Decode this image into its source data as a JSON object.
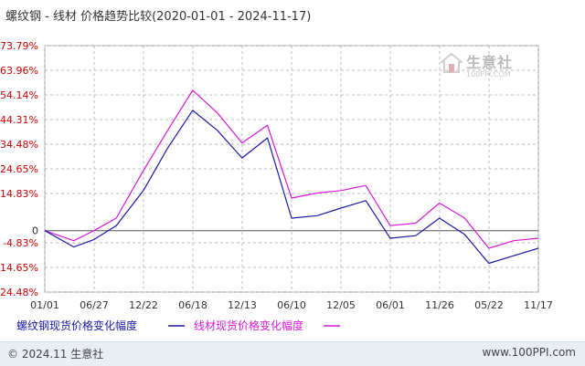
{
  "title": "螺纹钢 - 线材 价格趋势比较(2020-01-01 - 2024-11-17)",
  "footer": {
    "copyright": "© 2024.11 生意社",
    "site": "www.100PPI.com"
  },
  "logo": {
    "cn": "生意社",
    "en": "100PPI.COM"
  },
  "chart_data": {
    "type": "line",
    "title": "螺纹钢 - 线材 价格趋势比较(2020-01-01 - 2024-11-17)",
    "y_tick_labels": [
      "73.79%",
      "63.96%",
      "54.14%",
      "44.31%",
      "34.48%",
      "24.65%",
      "14.83%",
      "0",
      "-4.83%",
      "-14.65%",
      "-24.48%"
    ],
    "y_ticks": [
      73.79,
      63.96,
      54.14,
      44.31,
      34.48,
      24.65,
      14.83,
      0,
      -4.83,
      -14.65,
      -24.48
    ],
    "ylim": [
      -24.48,
      73.79
    ],
    "x_tick_labels": [
      "01/01",
      "06/27",
      "12/22",
      "06/18",
      "12/13",
      "06/10",
      "12/05",
      "06/01",
      "11/26",
      "05/22",
      "11/17"
    ],
    "x": [
      "2020-01-01",
      "2020-04-15",
      "2020-06-27",
      "2020-09-15",
      "2020-12-22",
      "2021-03-20",
      "2021-06-18",
      "2021-09-15",
      "2021-12-13",
      "2022-03-15",
      "2022-06-10",
      "2022-09-10",
      "2022-12-05",
      "2023-03-05",
      "2023-06-01",
      "2023-09-01",
      "2023-11-26",
      "2024-02-25",
      "2024-05-22",
      "2024-08-20",
      "2024-11-17"
    ],
    "series": [
      {
        "name": "螺纹钢现货价格变化幅度",
        "color": "#1a1aa6",
        "values": [
          0,
          -6.5,
          -3.5,
          2.0,
          16.0,
          33.0,
          48.0,
          40.0,
          29.0,
          37.0,
          5.0,
          6.0,
          9.0,
          12.0,
          -3.0,
          -2.0,
          5.0,
          -1.5,
          -13.0,
          -10.0,
          -7.0
        ]
      },
      {
        "name": "线材现货价格变化幅度",
        "color": "#d61ad6",
        "values": [
          0,
          -4.0,
          0,
          5.0,
          24.0,
          40.0,
          56.0,
          47.0,
          35.0,
          42.0,
          13.0,
          15.0,
          16.0,
          18.0,
          2.0,
          3.0,
          11.0,
          5.0,
          -7.0,
          -4.0,
          -3.0
        ]
      }
    ],
    "grid": true,
    "legend": "bottom"
  }
}
